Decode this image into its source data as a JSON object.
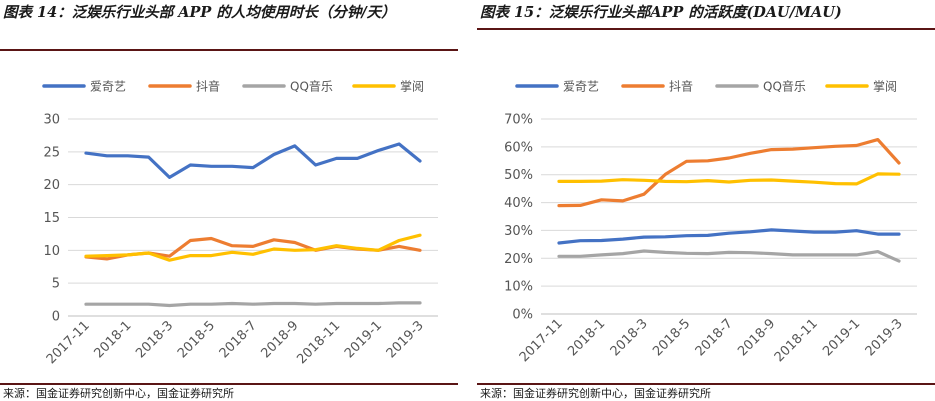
{
  "source_note": "来源：国金证券研究创新中心，国金证券研究所",
  "colors": {
    "iqiyi": "#4472c4",
    "douyin": "#ed7d31",
    "qqmusic": "#a5a5a5",
    "zhangyue": "#ffc000",
    "rule": "#5a1515",
    "grid": "#d9d9d9"
  },
  "chart_data": [
    {
      "type": "line",
      "title": "图表 14：泛娱乐行业头部 APP 的人均使用时长（分钟/天）",
      "xlabel": "",
      "ylabel": "",
      "ylim": [
        0,
        30
      ],
      "yticks": [
        "0",
        "5",
        "10",
        "15",
        "20",
        "25",
        "30"
      ],
      "ytick_values": [
        0,
        5,
        10,
        15,
        20,
        25,
        30
      ],
      "categories": [
        "2017-11",
        "2017-12",
        "2018-1",
        "2018-2",
        "2018-3",
        "2018-4",
        "2018-5",
        "2018-6",
        "2018-7",
        "2018-8",
        "2018-9",
        "2018-10",
        "2018-11",
        "2018-12",
        "2019-1",
        "2019-2",
        "2019-3"
      ],
      "xtick_labels": [
        "2017-11",
        "2018-1",
        "2018-3",
        "2018-5",
        "2018-7",
        "2018-9",
        "2018-11",
        "2019-1",
        "2019-3"
      ],
      "legend_position": "top",
      "series": [
        {
          "name": "爱奇艺",
          "key": "iqiyi",
          "values": [
            24.8,
            24.4,
            24.4,
            24.2,
            21.1,
            23.0,
            22.8,
            22.8,
            22.6,
            24.6,
            25.9,
            23.0,
            24.0,
            24.0,
            25.2,
            26.2,
            23.6
          ]
        },
        {
          "name": "抖音",
          "key": "douyin",
          "values": [
            9.0,
            8.7,
            9.3,
            9.6,
            9.1,
            11.5,
            11.8,
            10.7,
            10.6,
            11.6,
            11.2,
            10.0,
            10.6,
            10.2,
            10.0,
            10.6,
            10.0
          ]
        },
        {
          "name": "QQ音乐",
          "key": "qqmusic",
          "values": [
            1.8,
            1.8,
            1.8,
            1.8,
            1.6,
            1.8,
            1.8,
            1.9,
            1.8,
            1.9,
            1.9,
            1.8,
            1.9,
            1.9,
            1.9,
            2.0,
            2.0
          ]
        },
        {
          "name": "掌阅",
          "key": "zhangyue",
          "values": [
            9.1,
            9.2,
            9.3,
            9.6,
            8.5,
            9.2,
            9.2,
            9.7,
            9.4,
            10.2,
            10.0,
            10.1,
            10.7,
            10.3,
            10.0,
            11.5,
            12.3
          ]
        }
      ]
    },
    {
      "type": "line",
      "title": "图表 15：泛娱乐行业头部APP 的活跃度(DAU/MAU)",
      "xlabel": "",
      "ylabel": "",
      "ylim": [
        0,
        70
      ],
      "yticks": [
        "0%",
        "10%",
        "20%",
        "30%",
        "40%",
        "50%",
        "60%",
        "70%"
      ],
      "ytick_values": [
        0,
        10,
        20,
        30,
        40,
        50,
        60,
        70
      ],
      "categories": [
        "2017-11",
        "2017-12",
        "2018-1",
        "2018-2",
        "2018-3",
        "2018-4",
        "2018-5",
        "2018-6",
        "2018-7",
        "2018-8",
        "2018-9",
        "2018-10",
        "2018-11",
        "2018-12",
        "2019-1",
        "2019-2",
        "2019-3"
      ],
      "xtick_labels": [
        "2017-11",
        "2018-1",
        "2018-3",
        "2018-5",
        "2018-7",
        "2018-9",
        "2018-11",
        "2019-1",
        "2019-3"
      ],
      "legend_position": "top",
      "series": [
        {
          "name": "爱奇艺",
          "key": "iqiyi",
          "values": [
            25.5,
            26.3,
            26.4,
            26.9,
            27.6,
            27.7,
            28.1,
            28.2,
            29.0,
            29.5,
            30.2,
            29.8,
            29.4,
            29.4,
            29.9,
            28.7,
            28.7
          ]
        },
        {
          "name": "抖音",
          "key": "douyin",
          "values": [
            38.9,
            39.0,
            41.0,
            40.6,
            43.0,
            50.1,
            54.8,
            55.0,
            56.0,
            57.7,
            59.0,
            59.2,
            59.7,
            60.2,
            60.5,
            62.6,
            54.2
          ]
        },
        {
          "name": "QQ音乐",
          "key": "qqmusic",
          "values": [
            20.7,
            20.7,
            21.2,
            21.7,
            22.6,
            22.1,
            21.8,
            21.7,
            22.1,
            22.0,
            21.7,
            21.2,
            21.2,
            21.2,
            21.2,
            22.4,
            19.0
          ]
        },
        {
          "name": "掌阅",
          "key": "zhangyue",
          "values": [
            47.6,
            47.6,
            47.7,
            48.2,
            48.0,
            47.6,
            47.5,
            47.9,
            47.4,
            48.0,
            48.1,
            47.7,
            47.3,
            46.8,
            46.7,
            50.3,
            50.2
          ]
        }
      ]
    }
  ]
}
